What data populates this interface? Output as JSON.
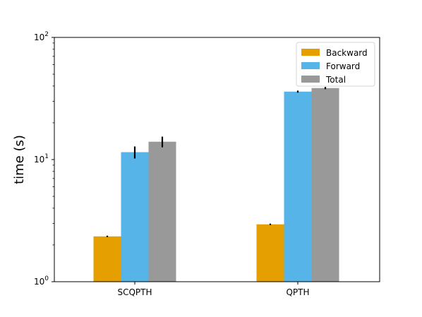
{
  "chart_data": {
    "type": "bar",
    "categories": [
      "SCQPTH",
      "QPTH"
    ],
    "series": [
      {
        "name": "Backward",
        "values": [
          2.35,
          2.95
        ],
        "errors": [
          0.03,
          0.04
        ],
        "color": "#E69F00"
      },
      {
        "name": "Forward",
        "values": [
          11.5,
          36.0
        ],
        "errors": [
          1.3,
          0.7
        ],
        "color": "#56B4E9"
      },
      {
        "name": "Total",
        "values": [
          14.0,
          38.5
        ],
        "errors": [
          1.4,
          0.8
        ],
        "color": "#999999"
      }
    ],
    "xlabel": "",
    "ylabel": "time (s)",
    "yscale": "log",
    "ylim": [
      1,
      100
    ],
    "yticks": [
      {
        "value": 1,
        "base": "10",
        "exp": "0"
      },
      {
        "value": 10,
        "base": "10",
        "exp": "1"
      },
      {
        "value": 100,
        "base": "10",
        "exp": "2"
      }
    ],
    "legend": {
      "position": "top-right"
    },
    "grid": false
  }
}
